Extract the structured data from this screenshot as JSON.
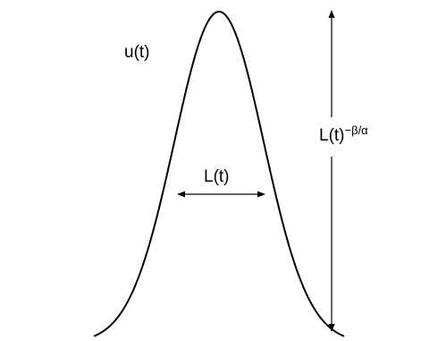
{
  "diagram": {
    "curve_label": "u(t)",
    "width_label": "L(t)",
    "height_label_base": "L(t)",
    "height_label_exponent": "−β/α",
    "colors": {
      "ink": "#000000",
      "background": "#ffffff"
    }
  }
}
